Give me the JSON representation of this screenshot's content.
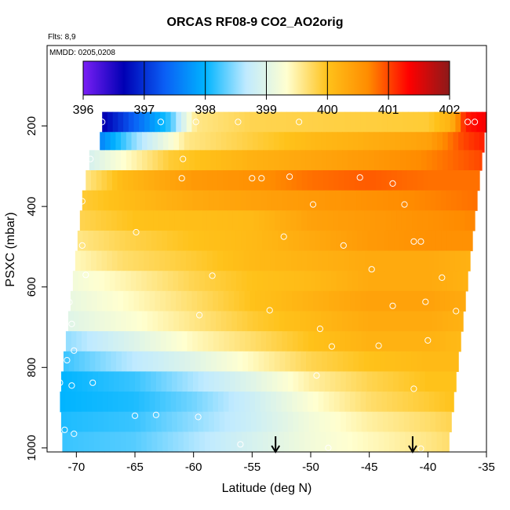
{
  "chart_data": {
    "type": "heatmap",
    "title": "ORCAS RF08-9 CO2_AO2orig",
    "subtitle_flights": "Flts: 8,9",
    "subtitle_dates": "MMDD: 0205,0208",
    "xlabel": "Latitude (deg N)",
    "ylabel": "PSXC (mbar)",
    "xlim": [
      -72.5,
      -35
    ],
    "ylim": [
      1010,
      0
    ],
    "x_ticks": [
      -70,
      -65,
      -60,
      -55,
      -50,
      -45,
      -40,
      -35
    ],
    "x_tick_labels": [
      "-70",
      "-65",
      "-60",
      "-55",
      "-50",
      "-45",
      "-40",
      "-35"
    ],
    "y_ticks": [
      200,
      400,
      600,
      800,
      1000
    ],
    "y_tick_labels": [
      "200",
      "400",
      "600",
      "800",
      "1000"
    ],
    "colorbar": {
      "range": [
        396,
        402
      ],
      "ticks": [
        396,
        397,
        398,
        399,
        400,
        401,
        402
      ],
      "tick_labels": [
        "396",
        "397",
        "398",
        "399",
        "400",
        "401",
        "402"
      ],
      "colors": [
        "#7a1ff5",
        "#0000b4",
        "#0a5ff5",
        "#00b4ff",
        "#bfeaff",
        "#ffffd0",
        "#ffc21a",
        "#ff8c00",
        "#ff0000",
        "#8b1a1a"
      ]
    },
    "rows": [
      {
        "p": 190,
        "lat_min": -67.8,
        "lat_max": -35.0,
        "pts": [
          [
            -67.8,
            396.6
          ],
          [
            -62.0,
            398.2
          ],
          [
            -59.8,
            399.6
          ],
          [
            -55.0,
            399.8
          ],
          [
            -40.0,
            399.9
          ],
          [
            -38.0,
            400.2
          ],
          [
            -36.8,
            401.2
          ],
          [
            -35.0,
            401.4
          ]
        ]
      },
      {
        "p": 240,
        "lat_min": -68.0,
        "lat_max": -35.2,
        "pts": [
          [
            -68.0,
            397.6
          ],
          [
            -65.0,
            398.5
          ],
          [
            -60.5,
            399.6
          ],
          [
            -50.0,
            400.1
          ],
          [
            -40.0,
            400.4
          ],
          [
            -37.0,
            401.0
          ],
          [
            -35.2,
            401.2
          ]
        ]
      },
      {
        "p": 285,
        "lat_min": -68.9,
        "lat_max": -35.4,
        "pts": [
          [
            -68.9,
            398.9
          ],
          [
            -62.0,
            399.9
          ],
          [
            -55.0,
            400.2
          ],
          [
            -45.0,
            400.5
          ],
          [
            -40.0,
            400.7
          ],
          [
            -35.4,
            401.0
          ]
        ]
      },
      {
        "p": 335,
        "lat_min": -69.2,
        "lat_max": -35.6,
        "pts": [
          [
            -69.2,
            399.6
          ],
          [
            -66.0,
            400.1
          ],
          [
            -60.0,
            400.5
          ],
          [
            -55.0,
            400.6
          ],
          [
            -50.0,
            400.8
          ],
          [
            -45.0,
            400.9
          ],
          [
            -40.0,
            400.8
          ],
          [
            -35.6,
            400.8
          ]
        ]
      },
      {
        "p": 385,
        "lat_min": -69.5,
        "lat_max": -35.8,
        "pts": [
          [
            -69.5,
            399.9
          ],
          [
            -65.0,
            400.1
          ],
          [
            -60.0,
            400.3
          ],
          [
            -50.0,
            400.5
          ],
          [
            -45.0,
            400.6
          ],
          [
            -40.0,
            400.7
          ],
          [
            -35.8,
            400.8
          ]
        ]
      },
      {
        "p": 435,
        "lat_min": -69.7,
        "lat_max": -36.0,
        "pts": [
          [
            -69.7,
            399.8
          ],
          [
            -65.0,
            400.0
          ],
          [
            -55.0,
            400.1
          ],
          [
            -50.0,
            400.4
          ],
          [
            -45.0,
            400.5
          ],
          [
            -40.0,
            400.6
          ],
          [
            -36.0,
            400.7
          ]
        ]
      },
      {
        "p": 485,
        "lat_min": -69.9,
        "lat_max": -36.2,
        "pts": [
          [
            -69.9,
            399.6
          ],
          [
            -66.0,
            399.8
          ],
          [
            -60.0,
            400.0
          ],
          [
            -55.0,
            400.1
          ],
          [
            -50.0,
            400.3
          ],
          [
            -45.0,
            400.5
          ],
          [
            -40.0,
            400.6
          ],
          [
            -36.2,
            400.6
          ]
        ]
      },
      {
        "p": 535,
        "lat_min": -70.1,
        "lat_max": -36.4,
        "pts": [
          [
            -70.1,
            399.4
          ],
          [
            -66.0,
            399.7
          ],
          [
            -60.0,
            399.9
          ],
          [
            -55.0,
            400.1
          ],
          [
            -50.0,
            400.2
          ],
          [
            -45.0,
            400.3
          ],
          [
            -40.0,
            400.3
          ],
          [
            -36.4,
            400.2
          ]
        ]
      },
      {
        "p": 585,
        "lat_min": -70.3,
        "lat_max": -36.6,
        "pts": [
          [
            -70.3,
            399.2
          ],
          [
            -65.0,
            399.5
          ],
          [
            -60.0,
            399.8
          ],
          [
            -55.0,
            400.0
          ],
          [
            -50.0,
            400.1
          ],
          [
            -45.0,
            400.3
          ],
          [
            -40.0,
            400.3
          ],
          [
            -36.6,
            400.2
          ]
        ]
      },
      {
        "p": 635,
        "lat_min": -70.5,
        "lat_max": -36.8,
        "pts": [
          [
            -70.5,
            399.1
          ],
          [
            -65.0,
            399.4
          ],
          [
            -60.0,
            399.7
          ],
          [
            -55.0,
            400.0
          ],
          [
            -50.0,
            400.2
          ],
          [
            -45.0,
            400.4
          ],
          [
            -40.0,
            400.4
          ],
          [
            -36.8,
            400.3
          ]
        ]
      },
      {
        "p": 685,
        "lat_min": -70.7,
        "lat_max": -37.0,
        "pts": [
          [
            -70.7,
            399.0
          ],
          [
            -65.0,
            399.3
          ],
          [
            -60.0,
            399.6
          ],
          [
            -55.0,
            399.9
          ],
          [
            -50.0,
            400.1
          ],
          [
            -45.0,
            400.3
          ],
          [
            -40.0,
            400.3
          ],
          [
            -37.0,
            400.2
          ]
        ]
      },
      {
        "p": 735,
        "lat_min": -70.9,
        "lat_max": -37.2,
        "pts": [
          [
            -70.9,
            398.5
          ],
          [
            -66.0,
            398.9
          ],
          [
            -60.0,
            399.4
          ],
          [
            -55.0,
            399.7
          ],
          [
            -50.0,
            400.0
          ],
          [
            -45.0,
            400.2
          ],
          [
            -40.0,
            400.2
          ],
          [
            -37.2,
            400.1
          ]
        ]
      },
      {
        "p": 785,
        "lat_min": -71.1,
        "lat_max": -37.4,
        "pts": [
          [
            -71.1,
            398.2
          ],
          [
            -66.0,
            398.6
          ],
          [
            -60.0,
            399.0
          ],
          [
            -55.0,
            399.4
          ],
          [
            -50.0,
            399.8
          ],
          [
            -45.0,
            400.0
          ],
          [
            -40.0,
            400.1
          ],
          [
            -37.4,
            400.1
          ]
        ]
      },
      {
        "p": 835,
        "lat_min": -71.3,
        "lat_max": -37.6,
        "pts": [
          [
            -71.3,
            398.0
          ],
          [
            -65.0,
            398.2
          ],
          [
            -60.0,
            398.6
          ],
          [
            -55.0,
            399.0
          ],
          [
            -50.0,
            399.5
          ],
          [
            -45.0,
            399.8
          ],
          [
            -40.0,
            400.0
          ],
          [
            -37.6,
            400.0
          ]
        ]
      },
      {
        "p": 885,
        "lat_min": -71.4,
        "lat_max": -37.8,
        "pts": [
          [
            -71.4,
            398.0
          ],
          [
            -65.0,
            398.1
          ],
          [
            -60.0,
            398.4
          ],
          [
            -55.0,
            398.8
          ],
          [
            -50.0,
            399.3
          ],
          [
            -45.0,
            399.7
          ],
          [
            -40.0,
            399.9
          ],
          [
            -37.8,
            400.0
          ]
        ]
      },
      {
        "p": 935,
        "lat_min": -71.3,
        "lat_max": -38.0,
        "pts": [
          [
            -71.3,
            398.1
          ],
          [
            -65.0,
            398.2
          ],
          [
            -60.0,
            398.5
          ],
          [
            -55.0,
            398.8
          ],
          [
            -50.0,
            399.2
          ],
          [
            -45.0,
            399.5
          ],
          [
            -40.0,
            399.7
          ],
          [
            -38.0,
            399.8
          ]
        ]
      },
      {
        "p": 985,
        "lat_min": -71.2,
        "lat_max": -38.2,
        "pts": [
          [
            -71.2,
            398.2
          ],
          [
            -65.0,
            398.3
          ],
          [
            -60.0,
            398.6
          ],
          [
            -55.0,
            398.9
          ],
          [
            -50.0,
            399.2
          ],
          [
            -45.0,
            399.4
          ],
          [
            -40.0,
            399.6
          ],
          [
            -38.2,
            399.7
          ]
        ]
      }
    ],
    "sample_markers": [
      [
        -67.8,
        190
      ],
      [
        -62.8,
        190
      ],
      [
        -59.8,
        190
      ],
      [
        -56.2,
        190
      ],
      [
        -51.0,
        190
      ],
      [
        -36.6,
        190
      ],
      [
        -36.0,
        190
      ],
      [
        -68.8,
        282
      ],
      [
        -60.9,
        282
      ],
      [
        -61.0,
        330
      ],
      [
        -55.0,
        330
      ],
      [
        -54.2,
        330
      ],
      [
        -51.8,
        326
      ],
      [
        -45.8,
        328
      ],
      [
        -43.0,
        343
      ],
      [
        -69.5,
        387
      ],
      [
        -49.8,
        395
      ],
      [
        -42.0,
        395
      ],
      [
        -64.9,
        464
      ],
      [
        -52.3,
        475
      ],
      [
        -47.2,
        497
      ],
      [
        -41.2,
        487
      ],
      [
        -40.6,
        487
      ],
      [
        -69.5,
        497
      ],
      [
        -69.2,
        570
      ],
      [
        -58.4,
        572
      ],
      [
        -44.8,
        556
      ],
      [
        -38.8,
        577
      ],
      [
        -70.6,
        638
      ],
      [
        -70.4,
        692
      ],
      [
        -59.5,
        670
      ],
      [
        -53.5,
        658
      ],
      [
        -43.0,
        647
      ],
      [
        -40.2,
        637
      ],
      [
        -49.2,
        704
      ],
      [
        -48.2,
        748
      ],
      [
        -44.2,
        746
      ],
      [
        -40.0,
        733
      ],
      [
        -37.6,
        660
      ],
      [
        -70.8,
        782
      ],
      [
        -70.2,
        758
      ],
      [
        -71.6,
        818
      ],
      [
        -71.4,
        838
      ],
      [
        -70.4,
        845
      ],
      [
        -68.6,
        838
      ],
      [
        -49.5,
        820
      ],
      [
        -41.2,
        853
      ],
      [
        -65.0,
        920
      ],
      [
        -63.2,
        918
      ],
      [
        -59.6,
        923
      ],
      [
        -71.0,
        955
      ],
      [
        -70.2,
        965
      ],
      [
        -56.0,
        991
      ],
      [
        -48.5,
        1000
      ],
      [
        -40.6,
        1002
      ]
    ],
    "flight_markers": [
      -53.0,
      -41.3
    ]
  }
}
